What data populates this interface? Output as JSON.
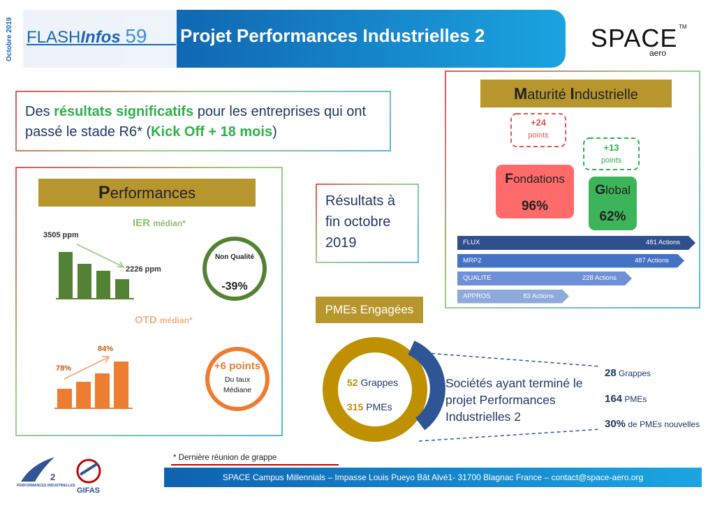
{
  "header": {
    "date": "Octobre 2019",
    "flash": "FLASH",
    "infos": "Infos",
    "number": "59",
    "title": "Projet Performances Industrielles 2",
    "logo": "SPACE",
    "logo_tm": "TM",
    "logo_sub": "aero"
  },
  "intro": {
    "part1": "Des",
    "highlight": "résultats significatifs",
    "part2": "pour les entreprises qui ont passé le stade R6* (",
    "kickoff": "Kick Off + 18 mois",
    "part3": ")"
  },
  "performances": {
    "title": "Performances",
    "ier": "IER",
    "ier_sub": "médian*",
    "ier_start": "3505 ppm",
    "ier_end": "2226 ppm",
    "nq_label": "Non Qualité",
    "nq_value": "-39%",
    "otd": "OTD",
    "otd_sub": "médian*",
    "otd_start": "78%",
    "otd_end": "84%",
    "gain_value": "+6 points",
    "gain_label": "Du taux Médiane"
  },
  "results": "Résultats à fin octobre 2019",
  "pmes": {
    "title": "PMEs Engagées",
    "grappes_n": "52",
    "grappes": "Grappes",
    "pmes_n": "315",
    "pmes": "PMEs",
    "finished": "Sociétés ayant terminé le projet Performances Industrielles 2",
    "stats": [
      {
        "n": "28",
        "label": "Grappes"
      },
      {
        "n": "164",
        "label": "PMEs"
      },
      {
        "n": "30%",
        "label": "de PMEs nouvelles"
      }
    ]
  },
  "maturity": {
    "title_words": [
      "Maturité",
      "Industrielle"
    ],
    "fondations_gain": "+24",
    "fondations_gain_unit": "points",
    "global_gain": "+13",
    "global_gain_unit": "points",
    "fondations": "Fondations",
    "fondations_value": "96%",
    "global": "Global",
    "global_value": "62%",
    "actions": [
      {
        "name": "FLUX",
        "value": "481 Actions"
      },
      {
        "name": "MRP2",
        "value": "487 Actions"
      },
      {
        "name": "QUALITE",
        "value": "228 Actions"
      },
      {
        "name": "APPROS",
        "value": "83 Actions"
      }
    ]
  },
  "footnote": "* Dernière réunion de grappe",
  "footer": "SPACE Campus Millennials – Impasse Louis Pueyo Bât Alvé1- 31700 Blagnac France – contact@space-aero.org",
  "logos": {
    "pi": "PERFORMANCES INDUSTRIELLES",
    "pi_num": "2",
    "gifas": "GIFAS"
  }
}
